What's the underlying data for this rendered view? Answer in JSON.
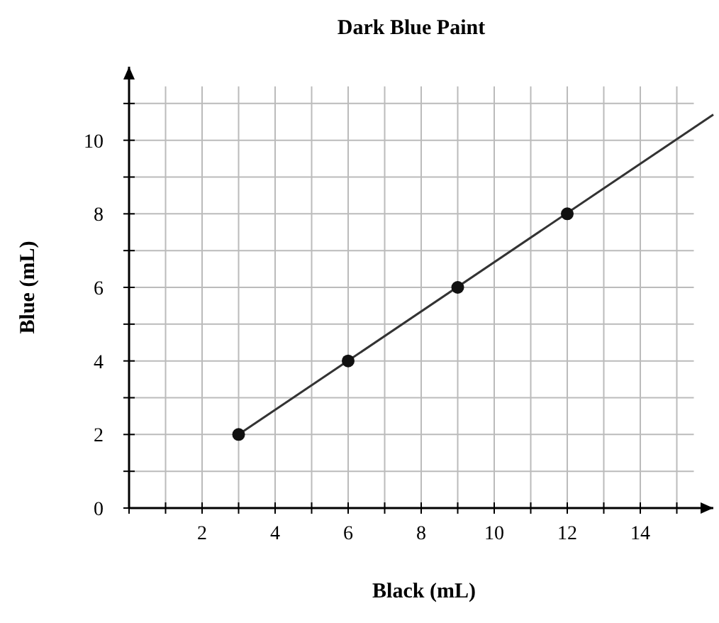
{
  "chart_data": {
    "type": "line",
    "title": "Dark Blue Paint",
    "xlabel": "Black (mL)",
    "ylabel": "Blue (mL)",
    "xlim": [
      0,
      16
    ],
    "ylim": [
      0,
      12
    ],
    "xticks": [
      {
        "value": 0,
        "label": null
      },
      {
        "value": 1,
        "label": null
      },
      2,
      {
        "value": 3,
        "label": null
      },
      4,
      {
        "value": 5,
        "label": null
      },
      6,
      {
        "value": 7,
        "label": null
      },
      8,
      {
        "value": 9,
        "label": null
      },
      10,
      {
        "value": 11,
        "label": null
      },
      12,
      {
        "value": 13,
        "label": null
      },
      14,
      {
        "value": 15,
        "label": null
      }
    ],
    "yticks": [
      0,
      {
        "value": 1,
        "label": null
      },
      2,
      {
        "value": 3,
        "label": null
      },
      4,
      {
        "value": 5,
        "label": null
      },
      6,
      {
        "value": 7,
        "label": null
      },
      8,
      {
        "value": 9,
        "label": null
      },
      10,
      {
        "value": 11,
        "label": null
      }
    ],
    "grid": true,
    "series": [
      {
        "color": "#333333",
        "marker": "none",
        "x": [
          3,
          16
        ],
        "values": [
          2,
          10.7
        ]
      },
      {
        "type": "scatter",
        "color": "#111111",
        "marker": "circle",
        "x": [
          3,
          6,
          9,
          12
        ],
        "values": [
          2,
          4,
          6,
          8
        ]
      }
    ]
  }
}
